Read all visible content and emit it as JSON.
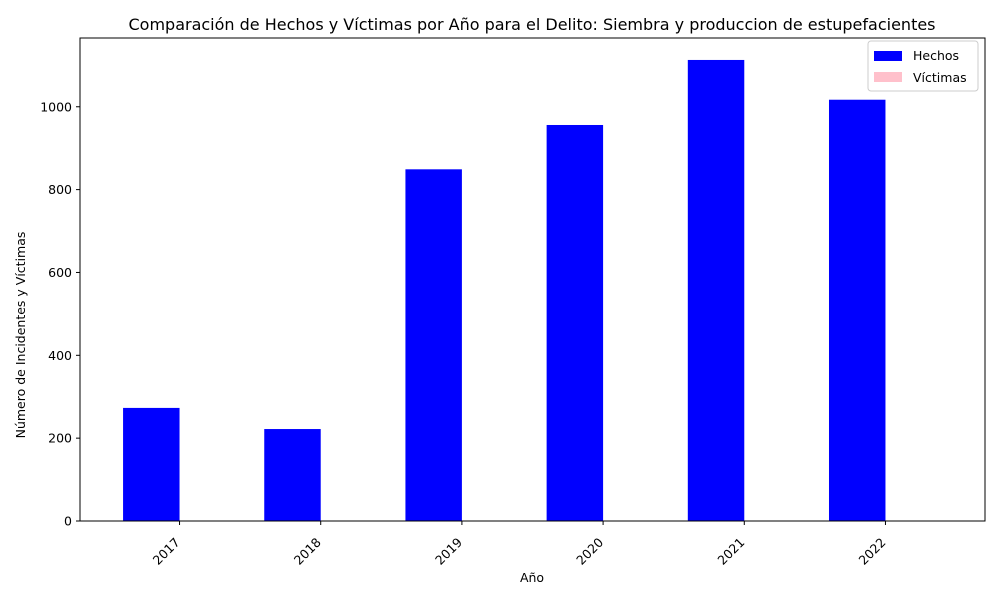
{
  "chart_data": {
    "type": "bar",
    "title": "Comparación de Hechos y Víctimas por Año para el Delito: Siembra y produccion de estupefacientes",
    "xlabel": "Año",
    "ylabel": "Número de Incidentes y Víctimas",
    "categories": [
      "2017",
      "2018",
      "2019",
      "2020",
      "2021",
      "2022"
    ],
    "series": [
      {
        "name": "Hechos",
        "color": "#0000ff",
        "values": [
          273,
          222,
          849,
          956,
          1113,
          1017
        ]
      },
      {
        "name": "Víctimas",
        "color": "#ffc0cb",
        "values": [
          0,
          0,
          0,
          0,
          0,
          0
        ]
      }
    ],
    "ylim": [
      0,
      1166
    ],
    "yticks": [
      0,
      200,
      400,
      600,
      800,
      1000
    ],
    "grid": false,
    "legend": "top-right"
  }
}
